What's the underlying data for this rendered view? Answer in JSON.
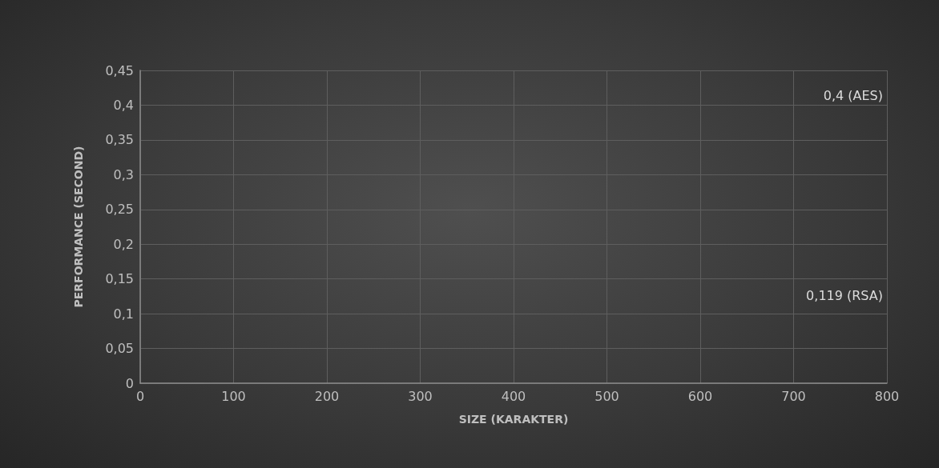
{
  "chart_data": {
    "type": "scatter",
    "xlabel": "SIZE (KARAKTER)",
    "ylabel": "PERFORMANCE (SECOND)",
    "xlim": [
      0,
      800
    ],
    "xticks": [
      0,
      100,
      200,
      300,
      400,
      500,
      600,
      700,
      800
    ],
    "ylim": [
      0,
      0.45
    ],
    "yticks": [
      {
        "value": 0,
        "label": "0"
      },
      {
        "value": 0.05,
        "label": "0,05"
      },
      {
        "value": 0.1,
        "label": "0,1"
      },
      {
        "value": 0.15,
        "label": "0,15"
      },
      {
        "value": 0.2,
        "label": "0,2"
      },
      {
        "value": 0.25,
        "label": "0,25"
      },
      {
        "value": 0.3,
        "label": "0,3"
      },
      {
        "value": 0.35,
        "label": "0,35"
      },
      {
        "value": 0.4,
        "label": "0,4"
      },
      {
        "value": 0.45,
        "label": "0,45"
      }
    ],
    "grid": true,
    "annotations": [
      "0,4 (AES)",
      "0,119 (RSA)"
    ]
  }
}
